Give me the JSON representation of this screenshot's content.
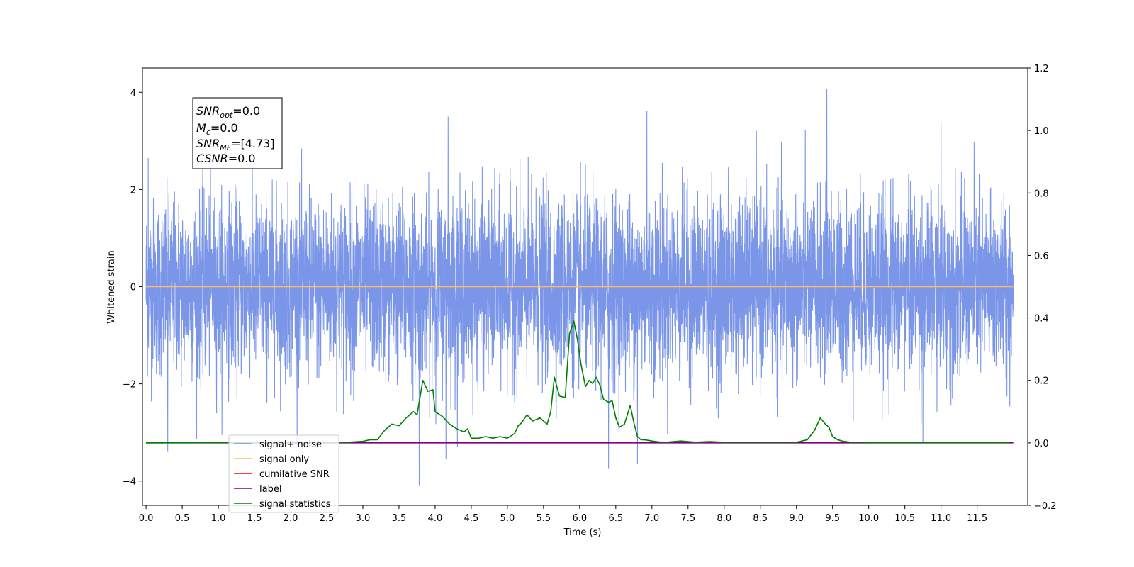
{
  "chart_data": {
    "type": "line",
    "xlabel": "Time (s)",
    "ylabel": "Whitened strain",
    "xlim": [
      -0.05,
      12.2
    ],
    "ylim": [
      -4.5,
      4.5
    ],
    "y2lim": [
      -0.2,
      1.2
    ],
    "x_ticks": [
      "0.0",
      "0.5",
      "1.0",
      "1.5",
      "2.0",
      "2.5",
      "3.0",
      "3.5",
      "4.0",
      "4.5",
      "5.0",
      "5.5",
      "6.0",
      "6.5",
      "7.0",
      "7.5",
      "8.0",
      "8.5",
      "9.0",
      "9.5",
      "10.0",
      "10.5",
      "11.0",
      "11.5"
    ],
    "y_ticks": [
      "4",
      "2",
      "0",
      "−2",
      "−4"
    ],
    "y2_ticks": [
      "1.2",
      "1.0",
      "0.8",
      "0.6",
      "0.4",
      "0.2",
      "0.0",
      "−0.2"
    ],
    "grid": false,
    "legend_position": "lower-left",
    "legend": [
      "signal+ noise",
      "signal only",
      "cumilative SNR",
      "label",
      "signal statistics"
    ],
    "annotation": {
      "line1": {
        "name": "SNR",
        "sub": "opt",
        "value": "=0.0"
      },
      "line2": {
        "name": "M",
        "sub": "c",
        "value": "=0.0"
      },
      "line3": {
        "name": "SNR",
        "sub": "MF",
        "value": "=[4.73]"
      },
      "line4": {
        "name": "CSNR",
        "sub": "",
        "value": "=0.0"
      }
    },
    "colors": {
      "signal_noise": "#7b96e8",
      "signal_only": "#ffbd5c",
      "cumulative_snr": "#ff0000",
      "label": "#800080",
      "signal_statistics": "#008000"
    },
    "series": [
      {
        "name": "signal+ noise",
        "axis": "left",
        "note_values": "white noise, std approx 0.9, 12 s long",
        "x_range": [
          0.0,
          12.0
        ],
        "peaks": [
          [
            0.03,
            2.65
          ],
          [
            0.3,
            -3.4
          ],
          [
            3.78,
            -4.1
          ],
          [
            4.15,
            -3.55
          ],
          [
            4.18,
            3.5
          ],
          [
            6.4,
            -3.75
          ],
          [
            6.8,
            -3.65
          ],
          [
            6.93,
            3.62
          ],
          [
            9.42,
            4.07
          ],
          [
            10.75,
            -3.2
          ],
          [
            11.0,
            3.4
          ]
        ]
      },
      {
        "name": "signal only",
        "axis": "left",
        "x": [
          0.0,
          12.0
        ],
        "y": [
          0.0,
          0.0
        ]
      },
      {
        "name": "label",
        "axis": "right",
        "x": [
          0.0,
          12.0
        ],
        "y": [
          0.0,
          0.0
        ]
      },
      {
        "name": "signal statistics",
        "axis": "right",
        "x": [
          0.0,
          2.8,
          3.0,
          3.1,
          3.2,
          3.3,
          3.4,
          3.5,
          3.6,
          3.7,
          3.75,
          3.83,
          3.9,
          3.97,
          4.0,
          4.1,
          4.2,
          4.3,
          4.4,
          4.45,
          4.5,
          4.6,
          4.7,
          4.8,
          4.9,
          5.0,
          5.1,
          5.15,
          5.2,
          5.27,
          5.35,
          5.45,
          5.55,
          5.6,
          5.65,
          5.72,
          5.8,
          5.86,
          5.92,
          5.97,
          6.02,
          6.08,
          6.13,
          6.18,
          6.23,
          6.28,
          6.33,
          6.4,
          6.45,
          6.5,
          6.55,
          6.62,
          6.7,
          6.75,
          6.8,
          6.85,
          6.9,
          6.95,
          7.0,
          7.1,
          7.2,
          7.4,
          7.6,
          7.8,
          8.0,
          8.5,
          9.0,
          9.15,
          9.25,
          9.33,
          9.4,
          9.45,
          9.5,
          9.57,
          9.65,
          9.75,
          9.9,
          10.0,
          11.0,
          11.95
        ],
        "y": [
          0.0,
          0.002,
          0.005,
          0.01,
          0.01,
          0.04,
          0.06,
          0.055,
          0.08,
          0.1,
          0.09,
          0.2,
          0.165,
          0.17,
          0.1,
          0.085,
          0.06,
          0.045,
          0.035,
          0.045,
          0.015,
          0.015,
          0.02,
          0.015,
          0.02,
          0.015,
          0.03,
          0.055,
          0.065,
          0.09,
          0.07,
          0.08,
          0.06,
          0.1,
          0.21,
          0.15,
          0.145,
          0.35,
          0.39,
          0.33,
          0.25,
          0.18,
          0.2,
          0.19,
          0.21,
          0.185,
          0.14,
          0.13,
          0.135,
          0.08,
          0.05,
          0.06,
          0.12,
          0.065,
          0.02,
          0.01,
          0.01,
          0.008,
          0.006,
          0.003,
          0.002,
          0.006,
          0.002,
          0.004,
          0.002,
          0.002,
          0.002,
          0.01,
          0.04,
          0.08,
          0.06,
          0.05,
          0.02,
          0.01,
          0.005,
          0.002,
          0.002,
          0.001,
          0.001,
          0.001
        ]
      }
    ]
  }
}
